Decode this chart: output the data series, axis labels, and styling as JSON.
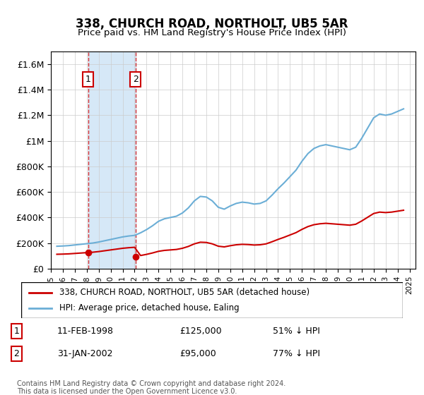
{
  "title": "338, CHURCH ROAD, NORTHOLT, UB5 5AR",
  "subtitle": "Price paid vs. HM Land Registry's House Price Index (HPI)",
  "sale1_date": 1998.11,
  "sale1_price": 125000,
  "sale1_label": "11-FEB-1998",
  "sale2_date": 2002.08,
  "sale2_price": 95000,
  "sale2_label": "31-JAN-2002",
  "hpi_color": "#6baed6",
  "price_color": "#cc0000",
  "shade_color": "#d6e8f7",
  "legend_line1": "338, CHURCH ROAD, NORTHOLT, UB5 5AR (detached house)",
  "legend_line2": "HPI: Average price, detached house, Ealing",
  "footnote": "Contains HM Land Registry data © Crown copyright and database right 2024.\nThis data is licensed under the Open Government Licence v3.0.",
  "table_rows": [
    {
      "num": "1",
      "date": "11-FEB-1998",
      "price": "£125,000",
      "hpi": "51% ↓ HPI"
    },
    {
      "num": "2",
      "date": "31-JAN-2002",
      "price": "£95,000",
      "hpi": "77% ↓ HPI"
    }
  ],
  "ylim_max": 1700000,
  "xmin": 1995.0,
  "xmax": 2025.5
}
